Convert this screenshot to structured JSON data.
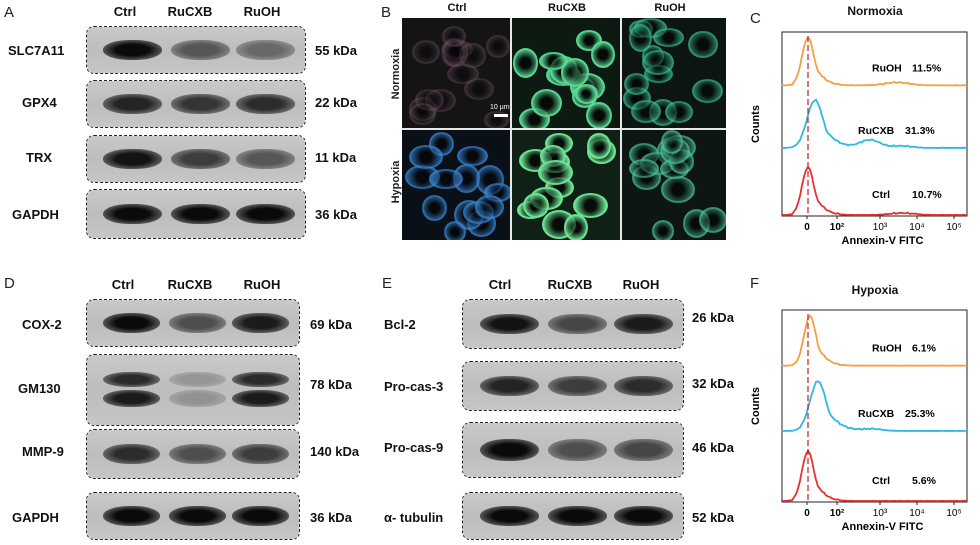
{
  "panels": {
    "A": {
      "letter": "A",
      "columns": [
        "Ctrl",
        "RuCXB",
        "RuOH"
      ],
      "rows": [
        {
          "protein": "SLC7A11",
          "kda": "55 kDa",
          "bands": [
            1.0,
            0.55,
            0.45
          ]
        },
        {
          "protein": "GPX4",
          "kda": "22 kDa",
          "bands": [
            0.85,
            0.75,
            0.8
          ]
        },
        {
          "protein": "TRX",
          "kda": "11 kDa",
          "bands": [
            0.95,
            0.7,
            0.55
          ]
        },
        {
          "protein": "GAPDH",
          "kda": "36 kDa",
          "bands": [
            1.0,
            1.0,
            1.0
          ]
        }
      ]
    },
    "B": {
      "letter": "B",
      "columns": [
        "Ctrl",
        "RuCXB",
        "RuOH"
      ],
      "rows": [
        "Normoxia",
        "Hypoxia"
      ],
      "scale_bar": "10 µm"
    },
    "C": {
      "letter": "C",
      "title": "Normoxia",
      "ylabel": "Counts",
      "xlabel": "Annexin-V FITC",
      "labels": [
        {
          "name": "RuOH",
          "pct": "11.5%"
        },
        {
          "name": "RuCXB",
          "pct": "31.3%"
        },
        {
          "name": "Ctrl",
          "pct": "10.7%"
        }
      ]
    },
    "D": {
      "letter": "D",
      "columns": [
        "Ctrl",
        "RuCXB",
        "RuOH"
      ],
      "rows": [
        {
          "protein": "COX-2",
          "kda": "69 kDa",
          "bands": [
            1.0,
            0.6,
            0.9
          ]
        },
        {
          "protein": "GM130",
          "kda": "78 kDa",
          "bands": [
            0.9,
            0.2,
            0.9
          ]
        },
        {
          "protein": "MMP-9",
          "kda": "140 kDa",
          "bands": [
            0.8,
            0.6,
            0.7
          ]
        },
        {
          "protein": "GAPDH",
          "kda": "36 kDa",
          "bands": [
            1.0,
            1.0,
            1.0
          ]
        }
      ]
    },
    "E": {
      "letter": "E",
      "columns": [
        "Ctrl",
        "RuCXB",
        "RuOH"
      ],
      "rows": [
        {
          "protein": "Bcl-2",
          "kda": "26 kDa",
          "bands": [
            0.95,
            0.65,
            0.9
          ]
        },
        {
          "protein": "Pro-cas-3",
          "kda": "32 kDa",
          "bands": [
            0.85,
            0.7,
            0.8
          ]
        },
        {
          "protein": "Pro-cas-9",
          "kda": "46 kDa",
          "bands": [
            1.0,
            0.6,
            0.65
          ]
        },
        {
          "protein": "α- tubulin",
          "kda": "52 kDa",
          "bands": [
            1.0,
            1.0,
            1.0
          ]
        }
      ]
    },
    "F": {
      "letter": "F",
      "title": "Hypoxia",
      "ylabel": "Counts",
      "xlabel": "Annexin-V FITC",
      "labels": [
        {
          "name": "RuOH",
          "pct": "6.1%"
        },
        {
          "name": "RuCXB",
          "pct": "25.3%"
        },
        {
          "name": "Ctrl",
          "pct": "5.6%"
        }
      ]
    }
  },
  "flow_ticks": [
    "0",
    "10²",
    "10³",
    "10⁴",
    "10⁵"
  ],
  "colors": {
    "orange": "#f5a040",
    "cyan": "#30b8e0",
    "red": "#e83030"
  }
}
